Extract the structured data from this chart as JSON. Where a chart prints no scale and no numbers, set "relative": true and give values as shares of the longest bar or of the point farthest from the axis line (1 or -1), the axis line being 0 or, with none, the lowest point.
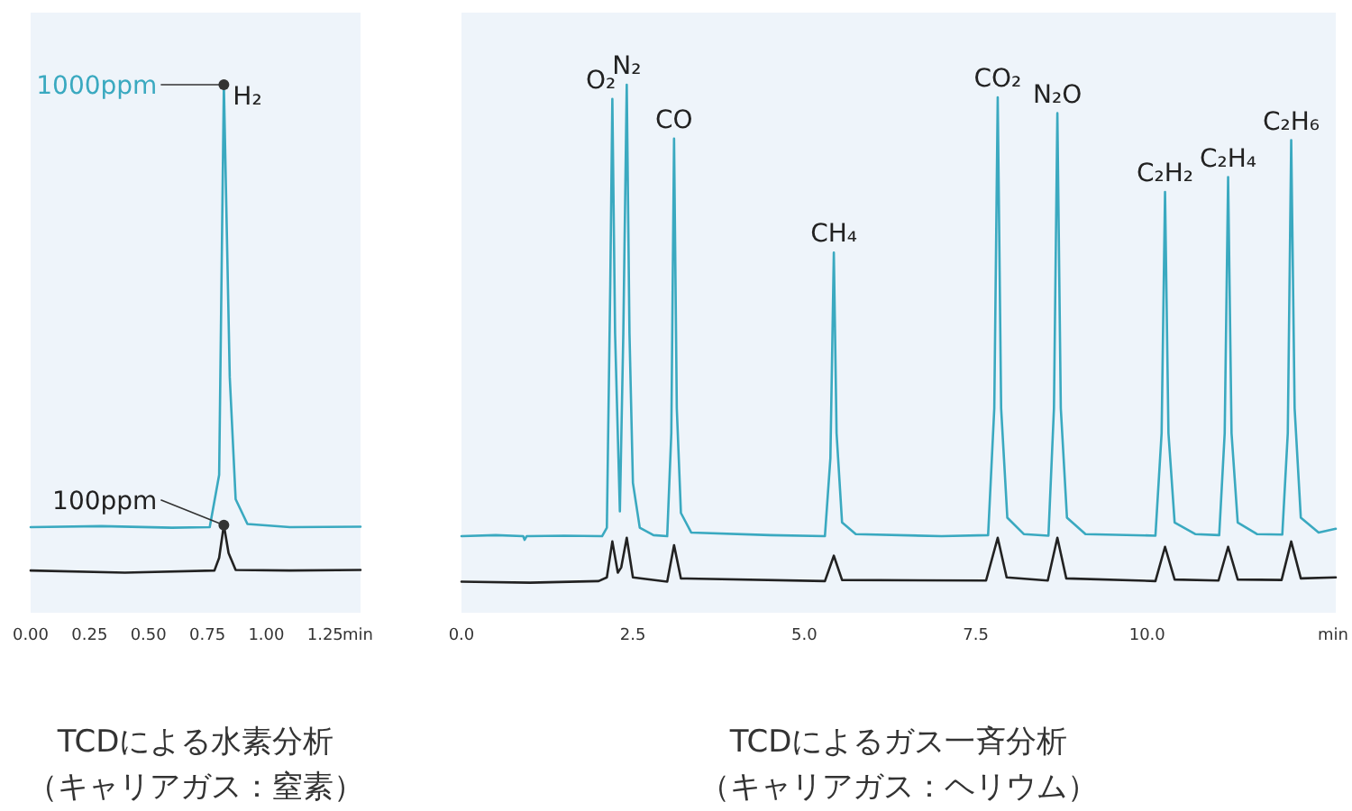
{
  "chart_data": [
    {
      "type": "line",
      "relative": true,
      "title": "TCDによる水素分析",
      "subtitle": "（キャリアガス：窒素）",
      "xlabel": "min",
      "xlim": [
        0,
        1.4
      ],
      "xticks": [
        {
          "value": 0,
          "label": "0.00"
        },
        0.25,
        {
          "value": 0.5,
          "label": "0.50"
        },
        0.75,
        {
          "value": 1,
          "label": "1.00"
        },
        1.25
      ],
      "series": [
        {
          "color": "#3aa9c0",
          "x": [
            0,
            0.3,
            0.6,
            0.76,
            0.8,
            0.82,
            0.845,
            0.87,
            0.92,
            1.1,
            1.4
          ],
          "values": [
            0.162,
            0.164,
            0.161,
            0.162,
            0.261,
            1,
            0.446,
            0.215,
            0.168,
            0.162,
            0.163
          ]
        },
        {
          "color": "#222222",
          "x": [
            0,
            0.4,
            0.78,
            0.8,
            0.82,
            0.84,
            0.87,
            1.1,
            1.4
          ],
          "values": [
            0.08,
            0.076,
            0.08,
            0.104,
            0.166,
            0.113,
            0.081,
            0.08,
            0.081
          ]
        }
      ],
      "annotations": [
        {
          "text": "1000ppm",
          "x": 0.82,
          "y": 1
        },
        {
          "text": "H₂",
          "x": 0.82,
          "y": 1
        },
        {
          "text": "100ppm",
          "x": 0.82,
          "y": 0.166
        }
      ]
    },
    {
      "type": "line",
      "relative": true,
      "title": "TCDによるガス一斉分析",
      "subtitle": "（キャリアガス：ヘリウム）",
      "xlabel": "min",
      "xlim": [
        0,
        12.75
      ],
      "xticks": [
        {
          "value": 0,
          "label": "0.0"
        },
        2.5,
        {
          "value": 5,
          "label": "5.0"
        },
        7.5,
        {
          "value": 10,
          "label": "10.0"
        }
      ],
      "series": [
        {
          "color": "#3aa9c0",
          "x": [
            0,
            0.5,
            0.9,
            0.92,
            0.95,
            1.5,
            2.05,
            2.12,
            2.17,
            2.2,
            2.24,
            2.31,
            2.36,
            2.41,
            2.45,
            2.5,
            2.6,
            2.8,
            3,
            3.06,
            3.1,
            3.14,
            3.2,
            3.35,
            4.5,
            5.3,
            5.38,
            5.43,
            5.47,
            5.55,
            5.75,
            7,
            7.68,
            7.77,
            7.82,
            7.87,
            7.96,
            8.2,
            8.56,
            8.64,
            8.69,
            8.74,
            8.83,
            9.1,
            10.12,
            10.21,
            10.26,
            10.31,
            10.4,
            10.7,
            11.05,
            11.13,
            11.18,
            11.23,
            11.32,
            11.6,
            11.97,
            12.05,
            12.1,
            12.15,
            12.24,
            12.5,
            12.75
          ],
          "values": [
            0.145,
            0.147,
            0.145,
            0.138,
            0.145,
            0.146,
            0.145,
            0.161,
            0.623,
            0.973,
            0.529,
            0.192,
            0.529,
            1,
            0.529,
            0.246,
            0.161,
            0.147,
            0.145,
            0.34,
            0.898,
            0.387,
            0.189,
            0.152,
            0.147,
            0.145,
            0.293,
            0.682,
            0.34,
            0.171,
            0.149,
            0.145,
            0.147,
            0.387,
            0.976,
            0.387,
            0.18,
            0.149,
            0.146,
            0.387,
            0.946,
            0.387,
            0.18,
            0.149,
            0.146,
            0.34,
            0.797,
            0.34,
            0.171,
            0.149,
            0.147,
            0.34,
            0.825,
            0.34,
            0.171,
            0.149,
            0.148,
            0.34,
            0.895,
            0.387,
            0.18,
            0.152,
            0.159
          ]
        },
        {
          "color": "#222222",
          "x": [
            0,
            1,
            2,
            2.12,
            2.2,
            2.28,
            2.33,
            2.41,
            2.5,
            3,
            3.1,
            3.2,
            5.3,
            5.43,
            5.55,
            7.65,
            7.82,
            7.95,
            8.55,
            8.69,
            8.82,
            10.12,
            10.26,
            10.4,
            11.04,
            11.18,
            11.32,
            11.96,
            12.1,
            12.24,
            12.75
          ],
          "values": [
            0.059,
            0.057,
            0.06,
            0.067,
            0.135,
            0.076,
            0.086,
            0.142,
            0.067,
            0.059,
            0.128,
            0.065,
            0.06,
            0.108,
            0.062,
            0.061,
            0.142,
            0.067,
            0.061,
            0.142,
            0.065,
            0.06,
            0.125,
            0.063,
            0.061,
            0.125,
            0.063,
            0.062,
            0.135,
            0.065,
            0.067
          ]
        }
      ],
      "annotations": [
        {
          "text": "O₂",
          "x": 2.2,
          "y": 0.973
        },
        {
          "text": "N₂",
          "x": 2.41,
          "y": 1
        },
        {
          "text": "CO",
          "x": 3.1,
          "y": 0.898
        },
        {
          "text": "CH₄",
          "x": 5.43,
          "y": 0.682
        },
        {
          "text": "CO₂",
          "x": 7.82,
          "y": 0.976
        },
        {
          "text": "N₂O",
          "x": 8.69,
          "y": 0.946
        },
        {
          "text": "C₂H₂",
          "x": 10.26,
          "y": 0.797
        },
        {
          "text": "C₂H₄",
          "x": 11.18,
          "y": 0.825
        },
        {
          "text": "C₂H₆",
          "x": 12.1,
          "y": 0.895
        }
      ]
    }
  ]
}
